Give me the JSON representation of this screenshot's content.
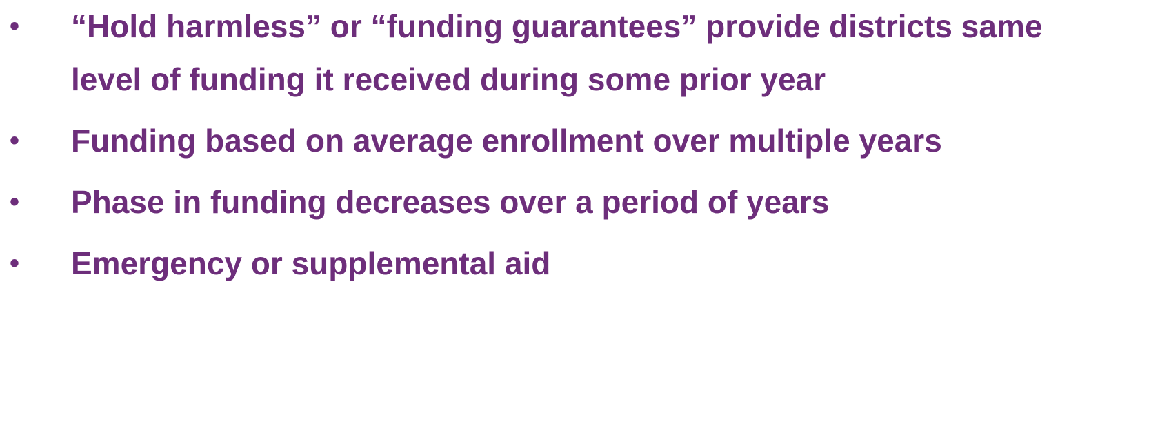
{
  "bullets": [
    "“Hold harmless” or “funding guarantees” provide districts same level of funding it received during some prior year",
    "Funding based on average enrollment over multiple years",
    "Phase in funding decreases over a period of years",
    "Emergency or supplemental aid"
  ]
}
